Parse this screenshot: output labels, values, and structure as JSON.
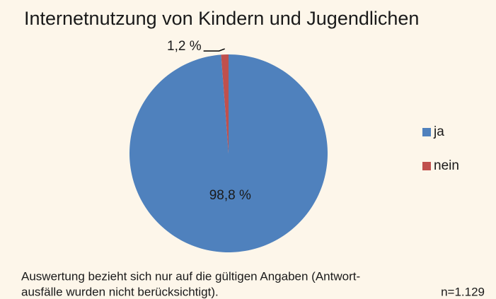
{
  "chart_data": {
    "type": "pie",
    "title": "Internetnutzung von Kindern und Jugendlichen",
    "categories": [
      "ja",
      "nein"
    ],
    "values": [
      98.8,
      1.2
    ],
    "value_labels": [
      "98,8 %",
      "1,2 %"
    ],
    "colors": [
      "#4f81bd",
      "#c0504d"
    ],
    "legend": "right",
    "notes": [
      "Auswertung bezieht sich nur auf die gültigen Angaben (Antwort-",
      "ausfälle wurden nicht berücksichtigt).",
      "n=1.129"
    ]
  }
}
